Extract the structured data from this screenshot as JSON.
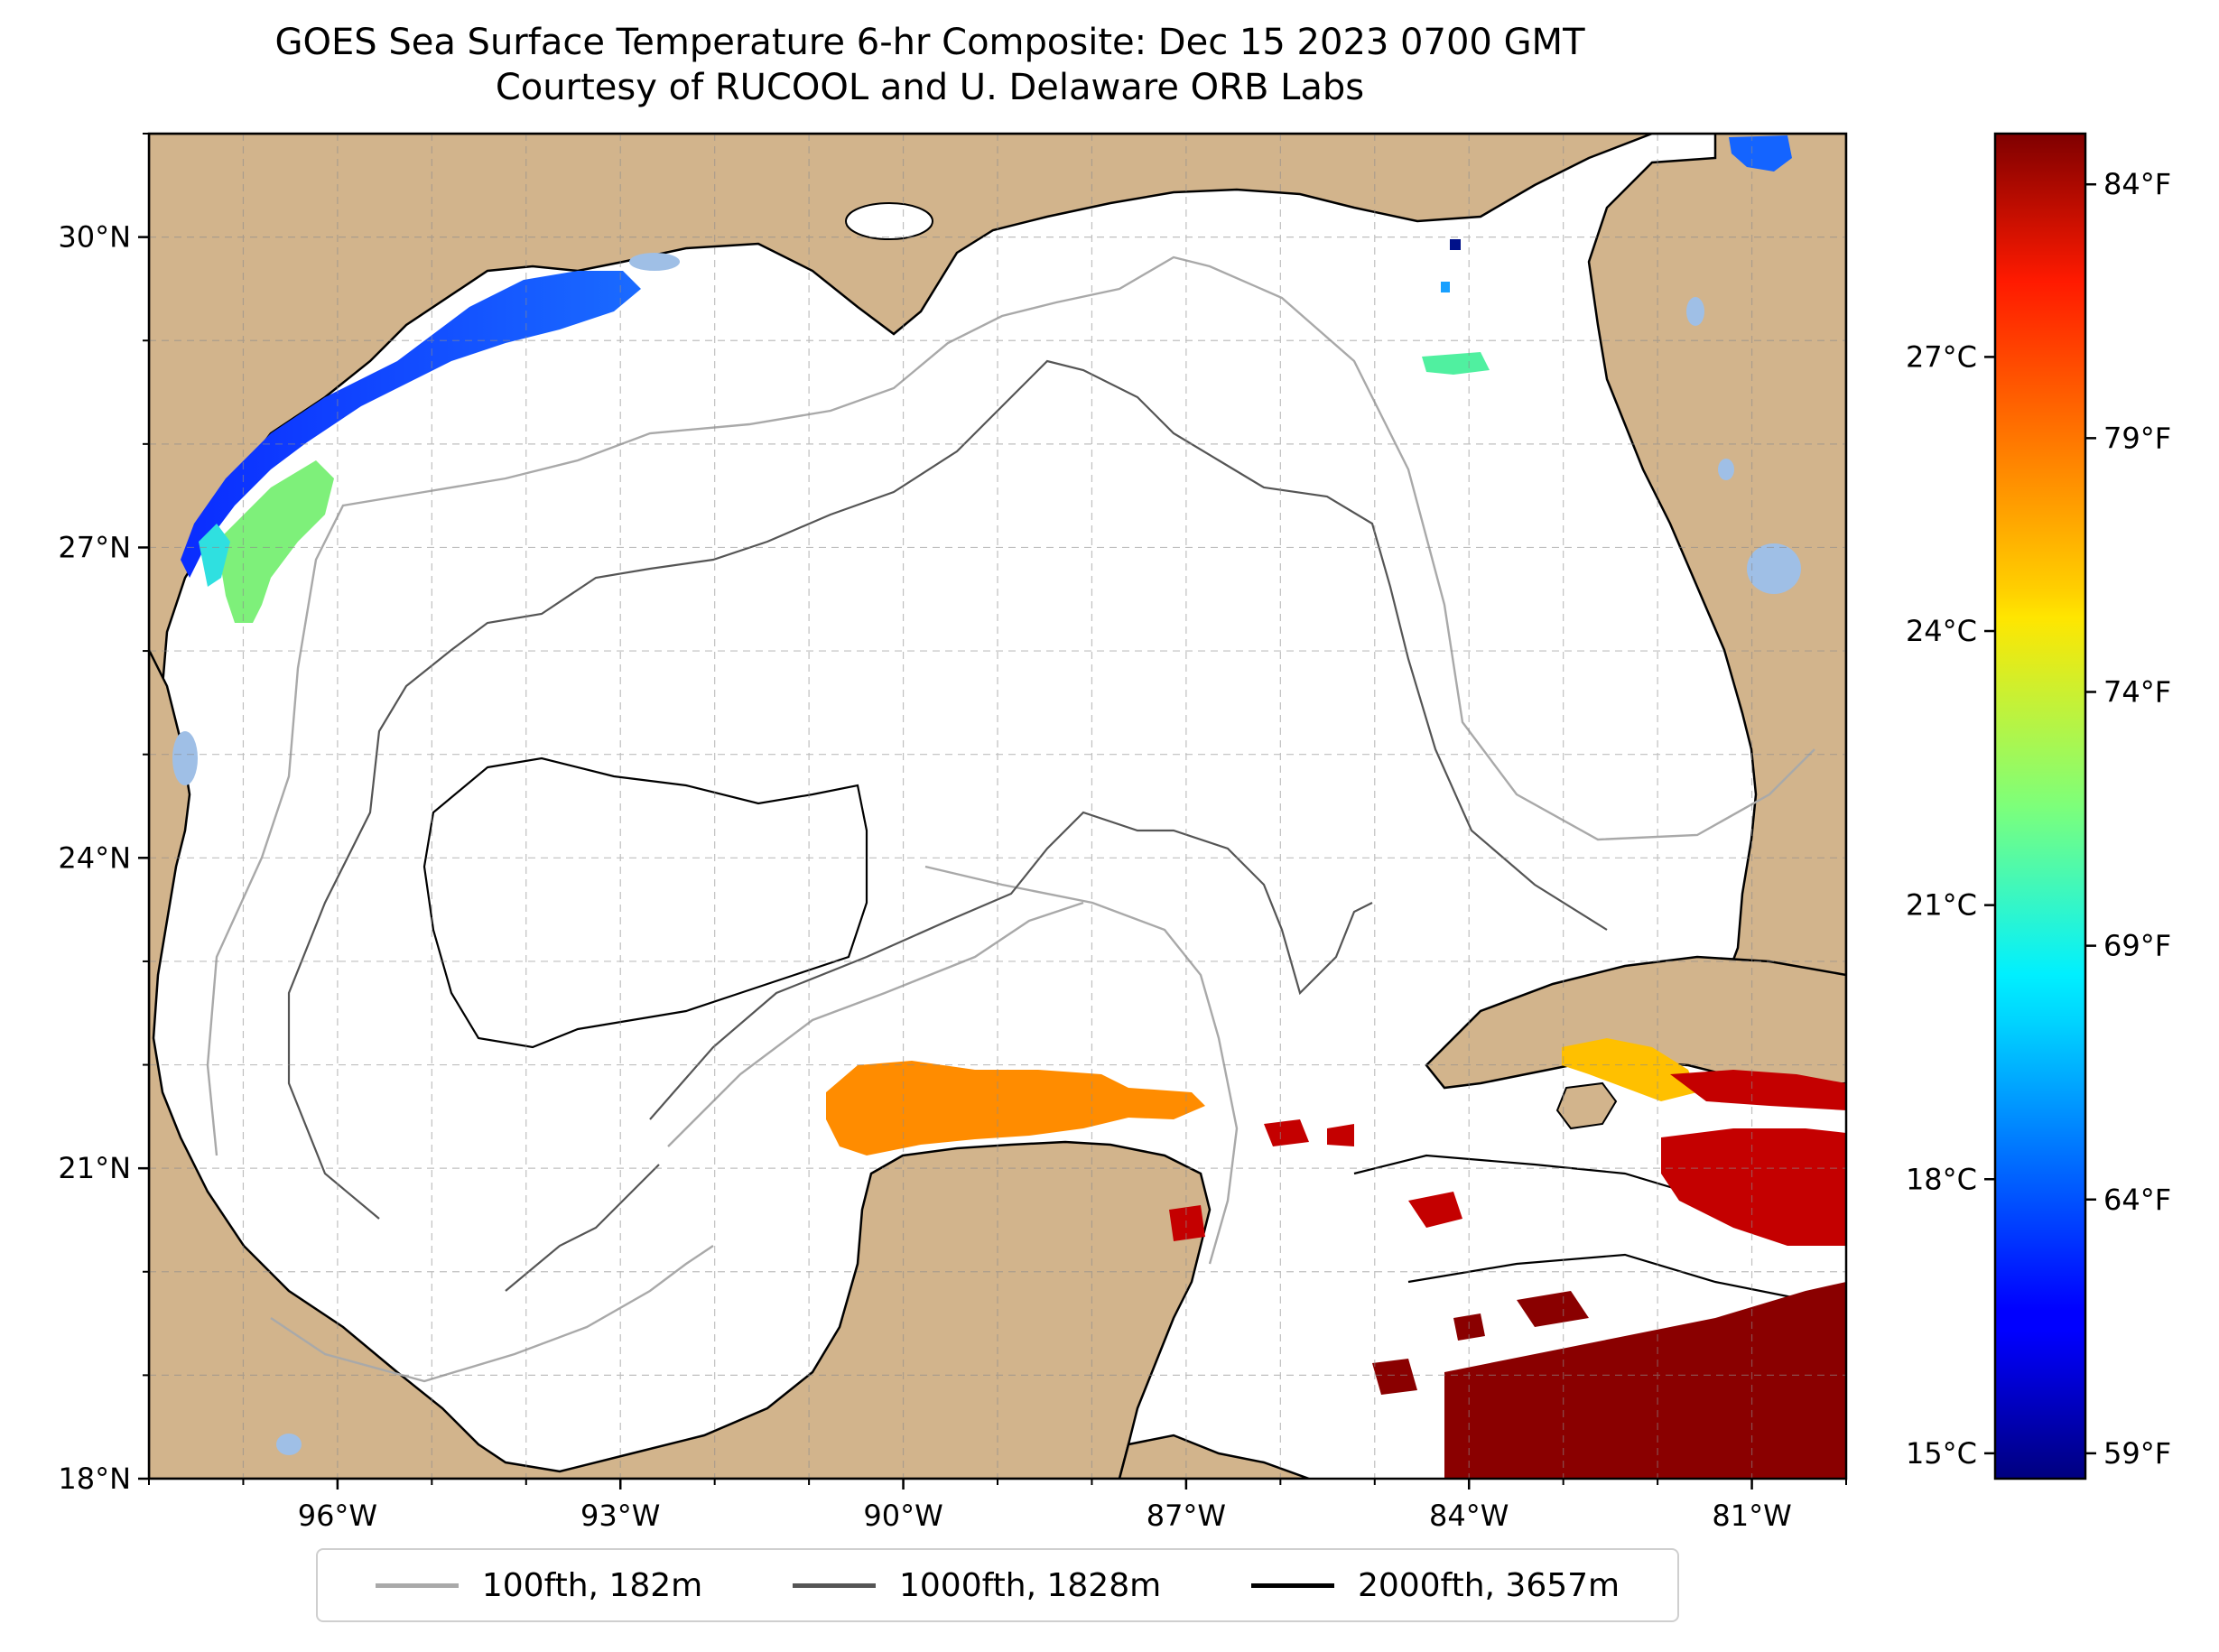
{
  "title": {
    "line1": "GOES Sea Surface Temperature 6-hr Composite: Dec 15 2023 0700 GMT",
    "line2": "Courtesy of RUCOOL and U. Delaware ORB Labs"
  },
  "map": {
    "extent": {
      "lon_min": -98.0,
      "lon_max": -80.0,
      "lat_min": 18.0,
      "lat_max": 31.0
    },
    "x_ticks": [
      {
        "lon": -96,
        "label": "96°W"
      },
      {
        "lon": -93,
        "label": "93°W"
      },
      {
        "lon": -90,
        "label": "90°W"
      },
      {
        "lon": -87,
        "label": "87°W"
      },
      {
        "lon": -84,
        "label": "84°W"
      },
      {
        "lon": -81,
        "label": "81°W"
      }
    ],
    "y_ticks": [
      {
        "lat": 30,
        "label": "30°N"
      },
      {
        "lat": 27,
        "label": "27°N"
      },
      {
        "lat": 24,
        "label": "24°N"
      },
      {
        "lat": 21,
        "label": "21°N"
      },
      {
        "lat": 18,
        "label": "18°N"
      }
    ],
    "grid": true,
    "land_color": "#d2b48c",
    "lake_color": "#9fbfe6",
    "ocean_color": "#ffffff"
  },
  "legend": {
    "placement": "bottom-center",
    "items": [
      {
        "label": "100fth, 182m",
        "color": "#a9a9a9"
      },
      {
        "label": "1000fth, 1828m",
        "color": "#555555"
      },
      {
        "label": "2000fth, 3657m",
        "color": "#000000"
      }
    ]
  },
  "colorbar": {
    "colormap": "jet",
    "celsius_ticks": [
      {
        "value": 15,
        "label": "15°C"
      },
      {
        "value": 18,
        "label": "18°C"
      },
      {
        "value": 21,
        "label": "21°C"
      },
      {
        "value": 24,
        "label": "24°C"
      },
      {
        "value": 27,
        "label": "27°C"
      }
    ],
    "fahrenheit_ticks": [
      {
        "value": 59,
        "label": "59°F"
      },
      {
        "value": 64,
        "label": "64°F"
      },
      {
        "value": 69,
        "label": "69°F"
      },
      {
        "value": 74,
        "label": "74°F"
      },
      {
        "value": 79,
        "label": "79°F"
      },
      {
        "value": 84,
        "label": "84°F"
      }
    ],
    "range_f": [
      58.5,
      85
    ]
  }
}
